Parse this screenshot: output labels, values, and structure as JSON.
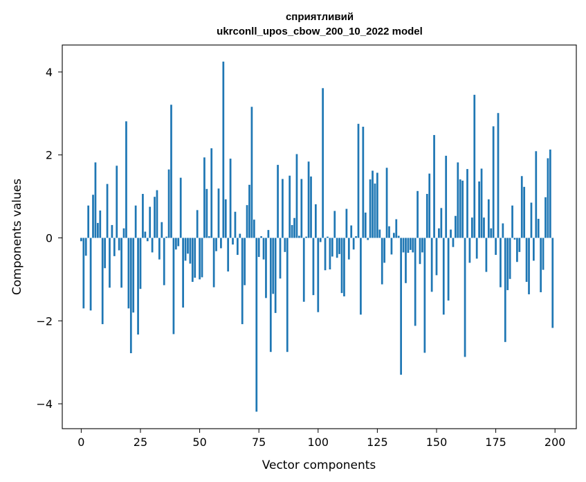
{
  "chart_data": {
    "type": "bar",
    "title": "сприятливий",
    "subtitle": "ukrconll_upos_cbow_200_10_2022 model",
    "xlabel": "Vector components",
    "ylabel": "Components values",
    "xlim": [
      -8,
      209
    ],
    "ylim": [
      -4.6,
      4.65
    ],
    "xticks": [
      0,
      25,
      50,
      75,
      100,
      125,
      150,
      175,
      200
    ],
    "yticks": [
      -4,
      -2,
      0,
      2,
      4
    ],
    "ytick_labels": [
      "−4",
      "−2",
      "0",
      "2",
      "4"
    ],
    "grid": false,
    "bar_color": "#1f77b4",
    "values": [
      -0.08,
      -1.7,
      -0.43,
      0.78,
      -1.75,
      1.04,
      1.82,
      0.36,
      0.66,
      -2.08,
      -0.73,
      1.3,
      -1.2,
      0.31,
      -0.44,
      1.74,
      -0.3,
      -1.2,
      0.23,
      2.81,
      -1.7,
      -2.78,
      -1.8,
      0.78,
      -2.33,
      -1.23,
      1.06,
      0.15,
      -0.08,
      0.75,
      -0.35,
      0.99,
      1.15,
      -0.52,
      0.38,
      -1.14,
      0.03,
      1.65,
      3.21,
      -2.32,
      -0.28,
      -0.2,
      1.45,
      -1.68,
      -0.55,
      -0.38,
      -0.62,
      -1.06,
      -0.96,
      0.67,
      -1.0,
      -0.95,
      1.94,
      1.18,
      0.04,
      2.16,
      -1.19,
      -0.32,
      1.19,
      -0.25,
      4.25,
      0.93,
      -0.81,
      1.91,
      -0.16,
      0.63,
      -0.41,
      0.1,
      -2.08,
      -1.14,
      0.79,
      1.28,
      3.16,
      0.44,
      -4.19,
      -0.46,
      0.04,
      -0.52,
      -1.45,
      0.19,
      -2.75,
      -1.35,
      -1.81,
      1.76,
      -0.98,
      1.42,
      -0.34,
      -2.75,
      1.5,
      0.31,
      0.48,
      2.02,
      0.05,
      1.42,
      -1.54,
      0.03,
      1.84,
      1.48,
      -1.38,
      0.81,
      -1.79,
      -0.1,
      3.61,
      -0.78,
      0.03,
      -0.76,
      -0.45,
      0.65,
      -0.48,
      -0.39,
      -1.33,
      -1.41,
      0.7,
      -0.52,
      0.3,
      -0.28,
      0.04,
      2.75,
      -1.85,
      2.68,
      0.61,
      -0.05,
      1.41,
      1.62,
      1.31,
      1.57,
      0.2,
      -1.12,
      -0.6,
      1.69,
      0.28,
      -0.4,
      0.12,
      0.45,
      0.05,
      -3.3,
      -0.35,
      -1.09,
      -0.36,
      -0.29,
      -0.35,
      -2.12,
      1.13,
      -0.63,
      -0.35,
      -2.77,
      1.06,
      1.55,
      -1.3,
      2.48,
      -0.9,
      0.23,
      0.72,
      -1.85,
      1.98,
      -1.51,
      0.2,
      -0.22,
      0.53,
      1.82,
      1.41,
      1.38,
      -2.87,
      1.66,
      -0.6,
      0.49,
      3.45,
      -0.5,
      1.36,
      1.67,
      0.49,
      -0.82,
      0.93,
      0.23,
      2.69,
      -0.41,
      3.01,
      -1.19,
      0.35,
      -2.51,
      -1.26,
      -0.99,
      0.78,
      -0.04,
      -0.58,
      -0.34,
      1.49,
      1.23,
      -1.06,
      -1.36,
      0.85,
      -0.55,
      2.09,
      0.46,
      -1.31,
      -0.77,
      0.98,
      1.92,
      2.13,
      -2.17
    ]
  }
}
